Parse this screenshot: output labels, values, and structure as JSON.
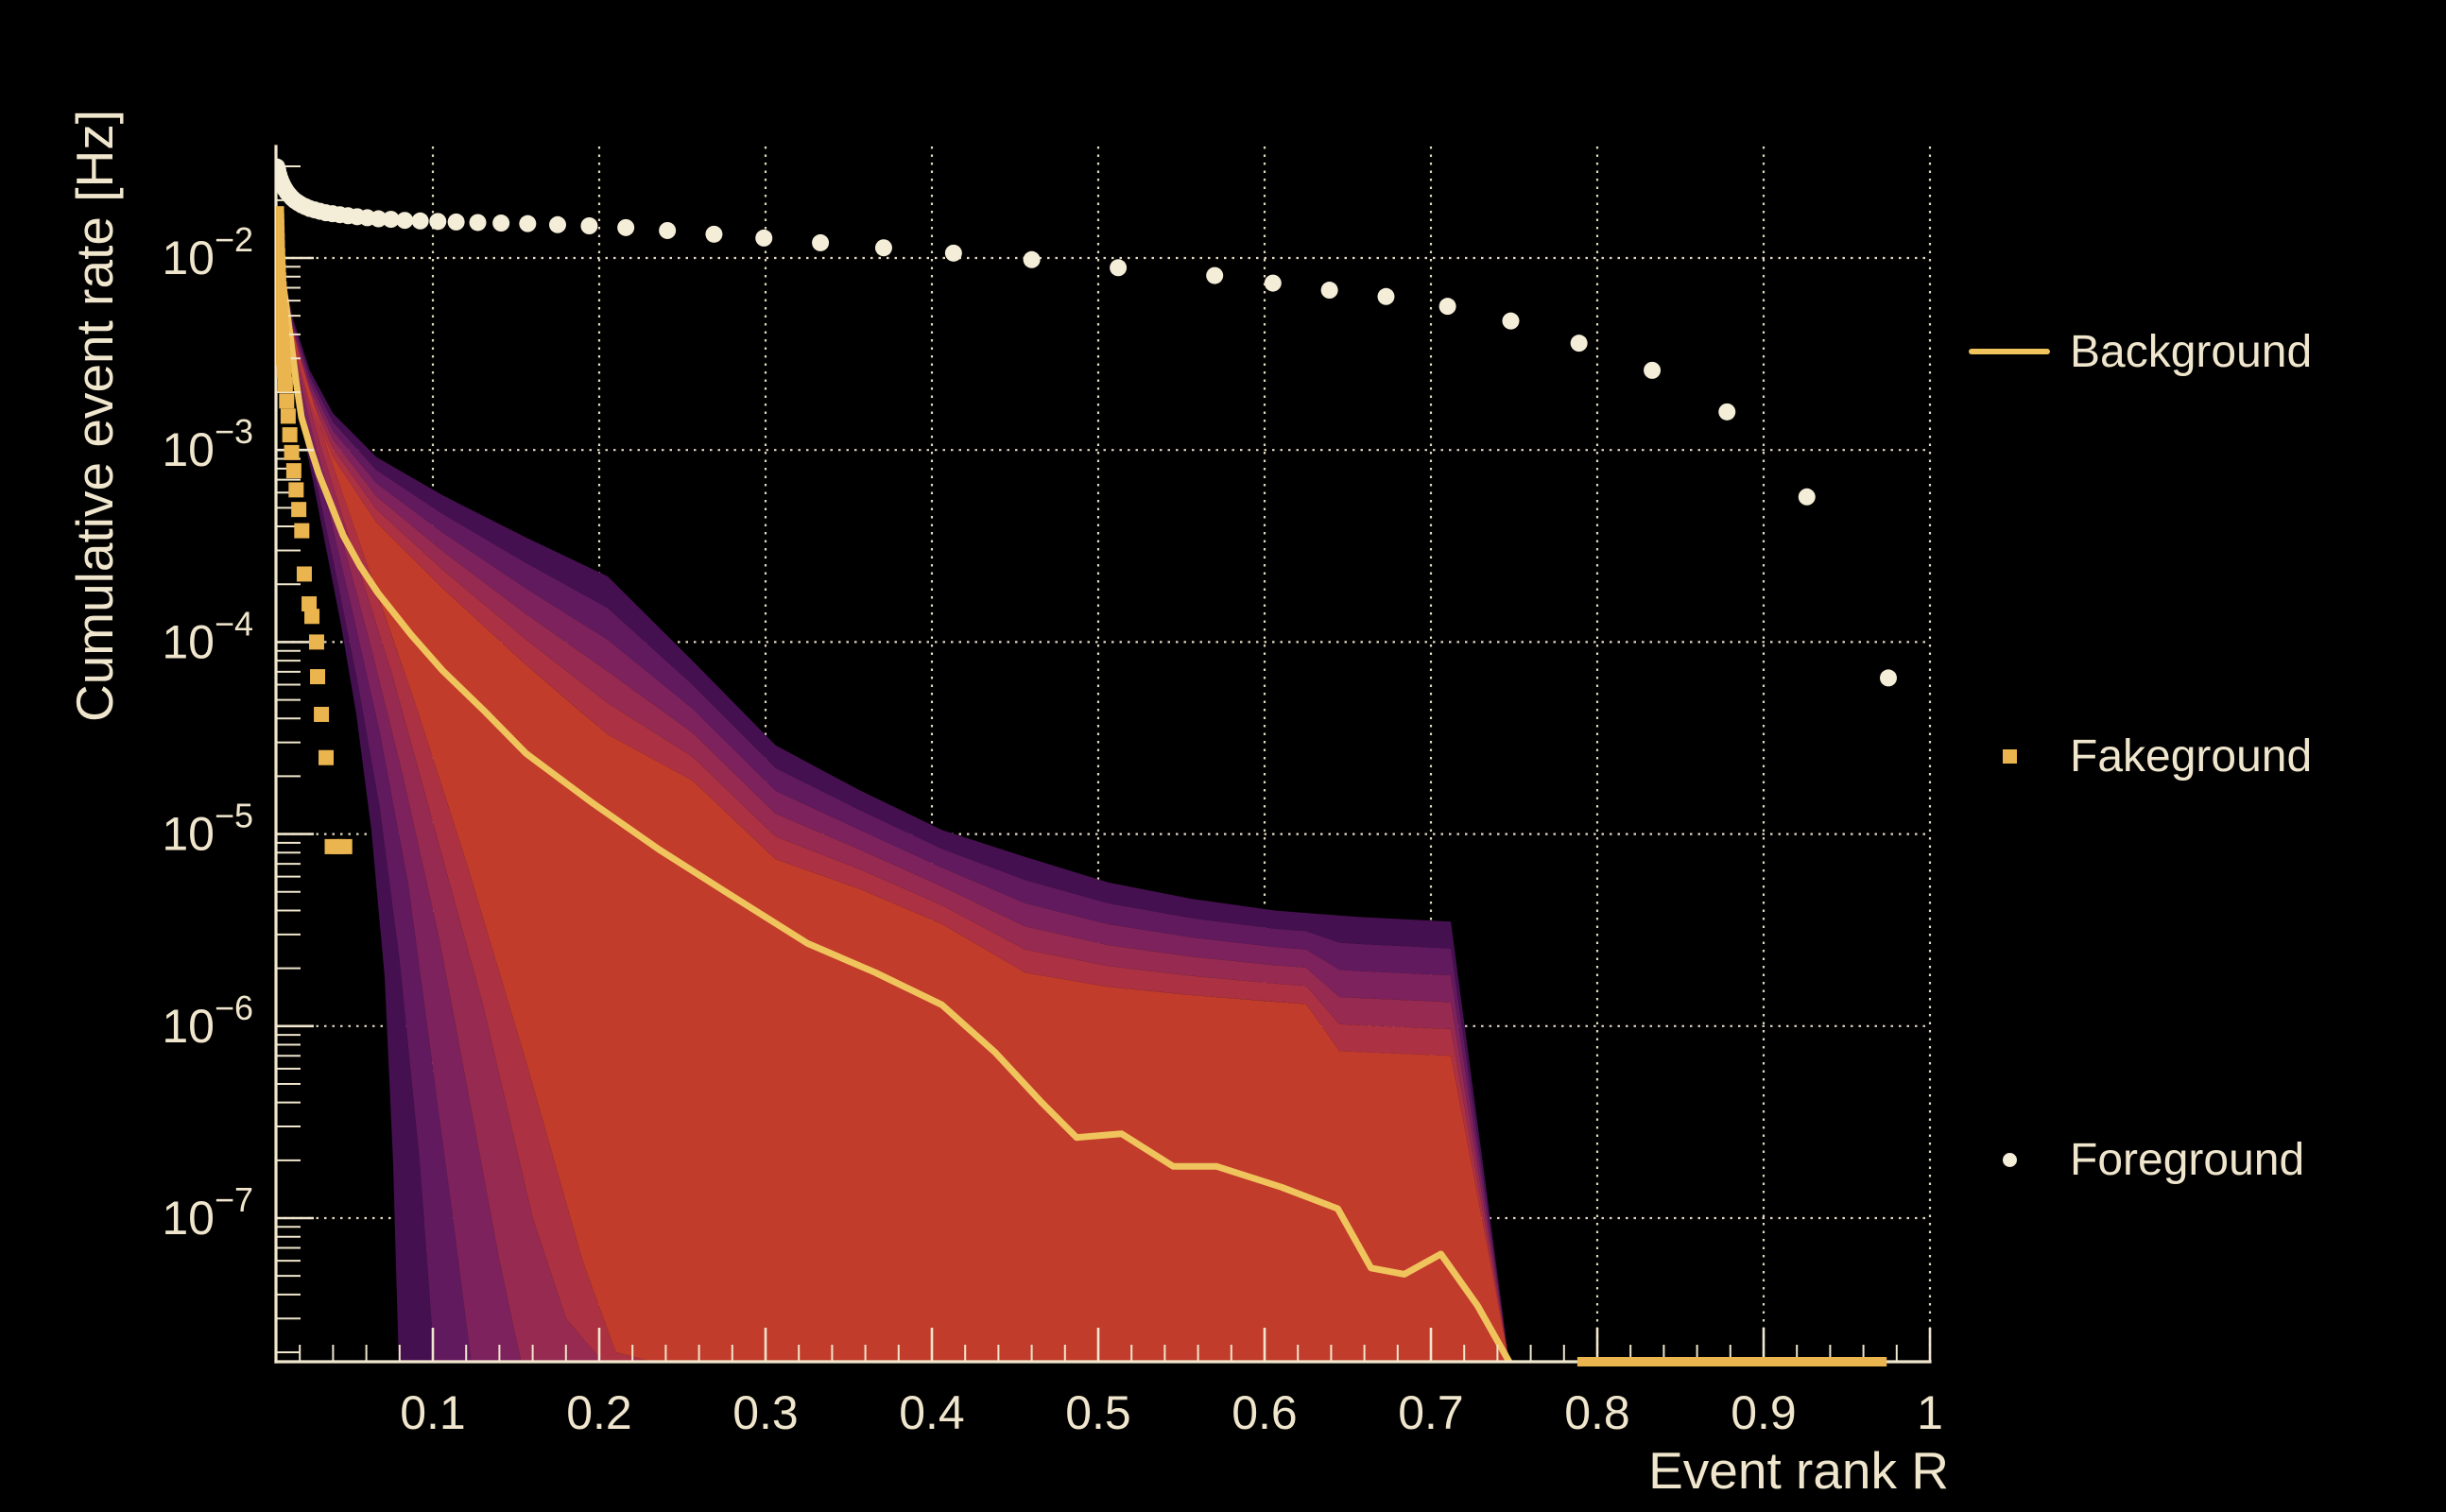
{
  "legend": {
    "items": [
      {
        "id": "background",
        "label": "Background",
        "marker": "line",
        "color": "#efc45c"
      },
      {
        "id": "fakeground",
        "label": "Fakeground",
        "marker": "square",
        "color": "#eab44e"
      },
      {
        "id": "foreground",
        "label": "Foreground",
        "marker": "dot",
        "color": "#f4edd8"
      }
    ]
  },
  "axes": {
    "x_title": "Event rank R",
    "y_title": "Cumulative event rate [Hz]",
    "x_tick_values": [
      0.1,
      0.2,
      0.3,
      0.4,
      0.5,
      0.6,
      0.7,
      0.8,
      0.9,
      1.0
    ],
    "x_tick_labels": [
      "0.1",
      "0.2",
      "0.3",
      "0.4",
      "0.5",
      "0.6",
      "0.7",
      "0.8",
      "0.9",
      "1"
    ],
    "x_minor_step": 0.02,
    "y_tick_exponents": [
      -2,
      -3,
      -4,
      -5,
      -6,
      -7
    ]
  },
  "colors": {
    "page_background": "#000000",
    "text": "#f0e6cd",
    "axis": "#f0e6cd",
    "grid": "#efe5cb",
    "band_rings": [
      "#45104f",
      "#611a5e",
      "#7d225c",
      "#962a51",
      "#ab3143"
    ],
    "band_core": "#c23c2c",
    "median_line": "#efc45c",
    "fakeground": "#eab44e",
    "foreground": "#f4edd8"
  },
  "chart_data": {
    "type": "composite-rate-plot",
    "title": "",
    "xlabel": "Event rank R",
    "ylabel": "Cumulative event rate [Hz]",
    "x_range": [
      0,
      1
    ],
    "y_scale": "log",
    "y_range": [
      1.79e-08,
      0.038
    ],
    "grid": "dotted cream gridlines at decades and at 0.1 rank steps",
    "legend_position": "right, outside plot",
    "series": {
      "foreground": {
        "label": "Foreground",
        "type": "scatter",
        "marker": "circle",
        "points": [
          [
            0.0062,
            0.0298
          ],
          [
            0.0068,
            0.0285
          ],
          [
            0.0075,
            0.027
          ],
          [
            0.0083,
            0.0257
          ],
          [
            0.0092,
            0.0246
          ],
          [
            0.0102,
            0.0236
          ],
          [
            0.0113,
            0.0227
          ],
          [
            0.0125,
            0.0219
          ],
          [
            0.0139,
            0.0212
          ],
          [
            0.0154,
            0.0205
          ],
          [
            0.0171,
            0.0199
          ],
          [
            0.019,
            0.0194
          ],
          [
            0.0211,
            0.0189
          ],
          [
            0.0234,
            0.0185
          ],
          [
            0.026,
            0.0181
          ],
          [
            0.0289,
            0.0178
          ],
          [
            0.0321,
            0.0175
          ],
          [
            0.0357,
            0.0172
          ],
          [
            0.0397,
            0.017
          ],
          [
            0.0441,
            0.0168
          ],
          [
            0.049,
            0.0166
          ],
          [
            0.0545,
            0.0164
          ],
          [
            0.0606,
            0.0162
          ],
          [
            0.0673,
            0.016
          ],
          [
            0.0748,
            0.0159
          ],
          [
            0.0831,
            0.0157
          ],
          [
            0.0924,
            0.0156
          ],
          [
            0.103,
            0.0155
          ],
          [
            0.114,
            0.0154
          ],
          [
            0.127,
            0.0153
          ],
          [
            0.141,
            0.0152
          ],
          [
            0.157,
            0.0151
          ],
          [
            0.175,
            0.0149
          ],
          [
            0.194,
            0.0147
          ],
          [
            0.216,
            0.0144
          ],
          [
            0.241,
            0.0139
          ],
          [
            0.269,
            0.0133
          ],
          [
            0.299,
            0.0127
          ],
          [
            0.333,
            0.012
          ],
          [
            0.371,
            0.0113
          ],
          [
            0.413,
            0.0106
          ],
          [
            0.46,
            0.0098
          ],
          [
            0.512,
            0.0089
          ],
          [
            0.57,
            0.0081
          ],
          [
            0.605,
            0.0074
          ],
          [
            0.639,
            0.0068
          ],
          [
            0.673,
            0.0063
          ],
          [
            0.71,
            0.0056
          ],
          [
            0.748,
            0.0047
          ],
          [
            0.789,
            0.0036
          ],
          [
            0.833,
            0.0026
          ],
          [
            0.878,
            0.00158
          ],
          [
            0.926,
            0.00057
          ],
          [
            0.975,
            6.5e-05
          ]
        ]
      },
      "fakeground": {
        "label": "Fakeground",
        "type": "scatter",
        "marker": "square",
        "points": [
          [
            0.006,
            0.017
          ],
          [
            0.0061,
            0.0157
          ],
          [
            0.0062,
            0.0145
          ],
          [
            0.0063,
            0.0134
          ],
          [
            0.0064,
            0.0123
          ],
          [
            0.0065,
            0.0113
          ],
          [
            0.0067,
            0.0103
          ],
          [
            0.0069,
            0.0094
          ],
          [
            0.0071,
            0.0085
          ],
          [
            0.0073,
            0.0077
          ],
          [
            0.0076,
            0.0069
          ],
          [
            0.0079,
            0.0061
          ],
          [
            0.0082,
            0.0054
          ],
          [
            0.0086,
            0.0047
          ],
          [
            0.009,
            0.0041
          ],
          [
            0.0095,
            0.0035
          ],
          [
            0.01,
            0.003
          ],
          [
            0.0106,
            0.0026
          ],
          [
            0.0113,
            0.0022
          ],
          [
            0.0121,
            0.0018
          ],
          [
            0.013,
            0.0015
          ],
          [
            0.014,
            0.0012
          ],
          [
            0.0151,
            0.00097
          ],
          [
            0.0164,
            0.00078
          ],
          [
            0.0178,
            0.00062
          ],
          [
            0.0194,
            0.00049
          ],
          [
            0.0212,
            0.00038
          ],
          [
            0.0227,
            0.000226
          ],
          [
            0.0256,
            0.000158
          ],
          [
            0.0273,
            0.000136
          ],
          [
            0.0301,
            0.0001
          ],
          [
            0.0307,
            6.6e-05
          ],
          [
            0.033,
            4.2e-05
          ],
          [
            0.0358,
            2.5e-05
          ],
          [
            0.0395,
            8.6e-06
          ],
          [
            0.043,
            8.6e-06
          ],
          [
            0.047,
            8.6e-06
          ]
        ],
        "bottom_run": {
          "r_start": 0.788,
          "r_end": 0.974,
          "note": "row of clipped markers lying on the bottom axis"
        }
      },
      "background": {
        "label": "Background",
        "type": "line-with-band",
        "median": [
          [
            0.0095,
            0.0078
          ],
          [
            0.012,
            0.0055
          ],
          [
            0.015,
            0.0035
          ],
          [
            0.018,
            0.0022
          ],
          [
            0.021,
            0.00148
          ],
          [
            0.026,
            0.00105
          ],
          [
            0.0315,
            0.00075
          ],
          [
            0.038,
            0.00054
          ],
          [
            0.046,
            0.00036
          ],
          [
            0.056,
            0.00025
          ],
          [
            0.067,
            0.00018
          ],
          [
            0.087,
            0.000109
          ],
          [
            0.106,
            7.08e-05
          ],
          [
            0.131,
            4.37e-05
          ],
          [
            0.156,
            2.63e-05
          ],
          [
            0.196,
            1.45e-05
          ],
          [
            0.236,
            8.3e-06
          ],
          [
            0.276,
            5e-06
          ],
          [
            0.325,
            2.7e-06
          ],
          [
            0.366,
            1.9e-06
          ],
          [
            0.406,
            1.29e-06
          ],
          [
            0.438,
            7.3e-07
          ],
          [
            0.466,
            4e-07
          ],
          [
            0.487,
            2.63e-07
          ],
          [
            0.514,
            2.75e-07
          ],
          [
            0.545,
            1.86e-07
          ],
          [
            0.571,
            1.86e-07
          ],
          [
            0.61,
            1.45e-07
          ],
          [
            0.644,
            1.12e-07
          ],
          [
            0.664,
            5.5e-08
          ],
          [
            0.684,
            5.1e-08
          ],
          [
            0.706,
            6.5e-08
          ],
          [
            0.728,
            3.5e-08
          ],
          [
            0.747,
            1.79e-08
          ]
        ],
        "band": {
          "top_weights": [
            0.8,
            0.6,
            0.4,
            0.2
          ],
          "top_outer": [
            [
              0.0095,
              0.0089
            ],
            [
              0.016,
              0.0048
            ],
            [
              0.026,
              0.0026
            ],
            [
              0.04,
              0.00155
            ],
            [
              0.066,
              0.00092
            ],
            [
              0.106,
              0.00058
            ],
            [
              0.156,
              0.00035
            ],
            [
              0.205,
              0.00022
            ],
            [
              0.256,
              8e-05
            ],
            [
              0.306,
              2.9e-05
            ],
            [
              0.356,
              1.7e-05
            ],
            [
              0.406,
              1.05e-05
            ],
            [
              0.456,
              7.6e-06
            ],
            [
              0.506,
              5.6e-06
            ],
            [
              0.556,
              4.6e-06
            ],
            [
              0.606,
              4e-06
            ],
            [
              0.656,
              3.7e-06
            ],
            [
              0.712,
              3.5e-06
            ],
            [
              0.747,
              1.79e-08
            ]
          ],
          "top_core": [
            [
              0.0095,
              0.0082
            ],
            [
              0.016,
              0.0038
            ],
            [
              0.026,
              0.0018
            ],
            [
              0.04,
              0.00092
            ],
            [
              0.066,
              0.00042
            ],
            [
              0.106,
              0.00019
            ],
            [
              0.156,
              7.6e-05
            ],
            [
              0.205,
              3.3e-05
            ],
            [
              0.256,
              1.9e-05
            ],
            [
              0.306,
              7.4e-06
            ],
            [
              0.356,
              5.2e-06
            ],
            [
              0.406,
              3.4e-06
            ],
            [
              0.456,
              1.9e-06
            ],
            [
              0.506,
              1.6e-06
            ],
            [
              0.556,
              1.45e-06
            ],
            [
              0.625,
              1.3e-06
            ],
            [
              0.645,
              7.4e-07
            ],
            [
              0.712,
              7e-07
            ],
            [
              0.747,
              1.79e-08
            ]
          ],
          "bottom_boundaries": [
            [
              [
                0.0095,
                0.006
              ],
              [
                0.014,
                0.003
              ],
              [
                0.02,
                0.0015
              ],
              [
                0.028,
                0.00068
              ],
              [
                0.036,
                0.0003
              ],
              [
                0.045,
                0.00012
              ],
              [
                0.054,
                4.2e-05
              ],
              [
                0.063,
                1.05e-05
              ],
              [
                0.071,
                1.8e-06
              ],
              [
                0.076,
                2e-07
              ],
              [
                0.0795,
                1.79e-08
              ]
            ],
            [
              [
                0.0095,
                0.0062
              ],
              [
                0.015,
                0.003
              ],
              [
                0.022,
                0.00138
              ],
              [
                0.032,
                0.00056
              ],
              [
                0.043,
                0.0002
              ],
              [
                0.055,
                6e-05
              ],
              [
                0.068,
                1.38e-05
              ],
              [
                0.08,
                2.2e-06
              ],
              [
                0.092,
                2e-07
              ],
              [
                0.101,
                1.79e-08
              ]
            ],
            [
              [
                0.0095,
                0.0064
              ],
              [
                0.016,
                0.003
              ],
              [
                0.025,
                0.00128
              ],
              [
                0.038,
                0.00046
              ],
              [
                0.052,
                0.00014
              ],
              [
                0.068,
                3.4e-05
              ],
              [
                0.085,
                5.6e-06
              ],
              [
                0.1,
                6e-07
              ],
              [
                0.112,
                1e-07
              ],
              [
                0.123,
                1.79e-08
              ]
            ],
            [
              [
                0.0095,
                0.0066
              ],
              [
                0.017,
                0.003
              ],
              [
                0.028,
                0.00118
              ],
              [
                0.044,
                0.00038
              ],
              [
                0.062,
                0.0001
              ],
              [
                0.082,
                2e-05
              ],
              [
                0.104,
                2.8e-06
              ],
              [
                0.125,
                3e-07
              ],
              [
                0.14,
                6e-08
              ],
              [
                0.153,
                1.79e-08
              ]
            ],
            [
              [
                0.0095,
                0.0068
              ],
              [
                0.018,
                0.003
              ],
              [
                0.032,
                0.00108
              ],
              [
                0.052,
                0.0003
              ],
              [
                0.075,
                7e-05
              ],
              [
                0.1,
                1.15e-05
              ],
              [
                0.13,
                1.3e-06
              ],
              [
                0.16,
                1e-07
              ],
              [
                0.18,
                3e-08
              ],
              [
                0.202,
                1.79e-08
              ]
            ],
            [
              [
                0.0095,
                0.007
              ],
              [
                0.02,
                0.003
              ],
              [
                0.037,
                0.00098
              ],
              [
                0.06,
                0.00026
              ],
              [
                0.088,
                5.2e-05
              ],
              [
                0.12,
                7.2e-06
              ],
              [
                0.155,
                7e-07
              ],
              [
                0.19,
                6e-08
              ],
              [
                0.21,
                2e-08
              ],
              [
                0.232,
                1.79e-08
              ]
            ]
          ],
          "right_cutoff_rank": 0.747,
          "note": "nested inferno-colored percentile band around the background median; lower layers terminate on the axis between R=0.08 and R=0.23"
        }
      }
    }
  }
}
